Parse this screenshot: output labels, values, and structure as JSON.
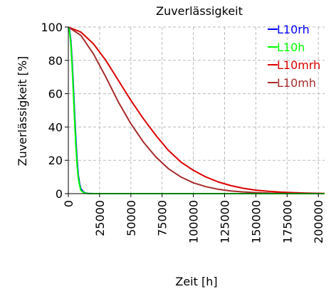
{
  "chart_data": {
    "type": "line",
    "title": "Zuverlässigkeit",
    "xlabel": "Zeit [h]",
    "ylabel": "Zuverlässigkeit [%]",
    "xlim": [
      0,
      205000
    ],
    "ylim": [
      0,
      100
    ],
    "x_ticks": [
      0,
      25000,
      50000,
      75000,
      100000,
      125000,
      150000,
      175000,
      200000
    ],
    "x_tick_labels": [
      "0",
      "25000",
      "50000",
      "75000",
      "100000",
      "125000",
      "150000",
      "175000",
      "200000"
    ],
    "y_ticks": [
      0,
      20,
      40,
      60,
      80,
      100
    ],
    "y_tick_labels": [
      "0",
      "20",
      "40",
      "60",
      "80",
      "100"
    ],
    "grid": true,
    "legend_position": "top-right",
    "series": [
      {
        "name": "L10rh",
        "color": "#0000ff",
        "x": [
          0,
          1000,
          2000,
          3000,
          4000,
          5000,
          6000,
          7000,
          8000,
          9000,
          10000,
          12000,
          14000,
          16000,
          20000,
          30000,
          50000,
          100000,
          150000,
          205000
        ],
        "y": [
          100,
          98,
          92,
          80,
          65,
          48,
          33,
          20,
          11,
          6,
          3,
          1,
          0.3,
          0.1,
          0,
          0,
          0,
          0,
          0,
          0
        ]
      },
      {
        "name": "L10h",
        "color": "#00ff00",
        "x": [
          0,
          1000,
          2000,
          3000,
          4000,
          5000,
          6000,
          7000,
          8000,
          9000,
          10000,
          12000,
          14000,
          16000,
          20000,
          30000,
          50000,
          100000,
          150000,
          205000
        ],
        "y": [
          100,
          97,
          90,
          77,
          61,
          44,
          29,
          17,
          9,
          5,
          2,
          0.7,
          0.2,
          0.05,
          0,
          0,
          0,
          0,
          0,
          0
        ]
      },
      {
        "name": "L10mrh",
        "color": "#dd0000",
        "x": [
          0,
          10000,
          20000,
          30000,
          40000,
          50000,
          60000,
          70000,
          80000,
          90000,
          100000,
          110000,
          120000,
          130000,
          140000,
          150000,
          160000,
          170000,
          180000,
          190000,
          205000
        ],
        "y": [
          100,
          97,
          90,
          80,
          68,
          56,
          45,
          35,
          26,
          19,
          14,
          10,
          7,
          4.8,
          3.2,
          2.1,
          1.4,
          0.9,
          0.6,
          0.3,
          0.1
        ]
      },
      {
        "name": "L10mh",
        "color": "#a52a2a",
        "x": [
          0,
          10000,
          20000,
          30000,
          40000,
          50000,
          60000,
          70000,
          80000,
          90000,
          100000,
          110000,
          120000,
          130000,
          140000,
          150000,
          160000,
          170000,
          180000,
          190000,
          205000
        ],
        "y": [
          100,
          95,
          84,
          70,
          55,
          42,
          31,
          22,
          15,
          10,
          6.5,
          4.2,
          2.6,
          1.6,
          1,
          0.6,
          0.3,
          0.2,
          0.1,
          0.05,
          0
        ]
      }
    ]
  }
}
